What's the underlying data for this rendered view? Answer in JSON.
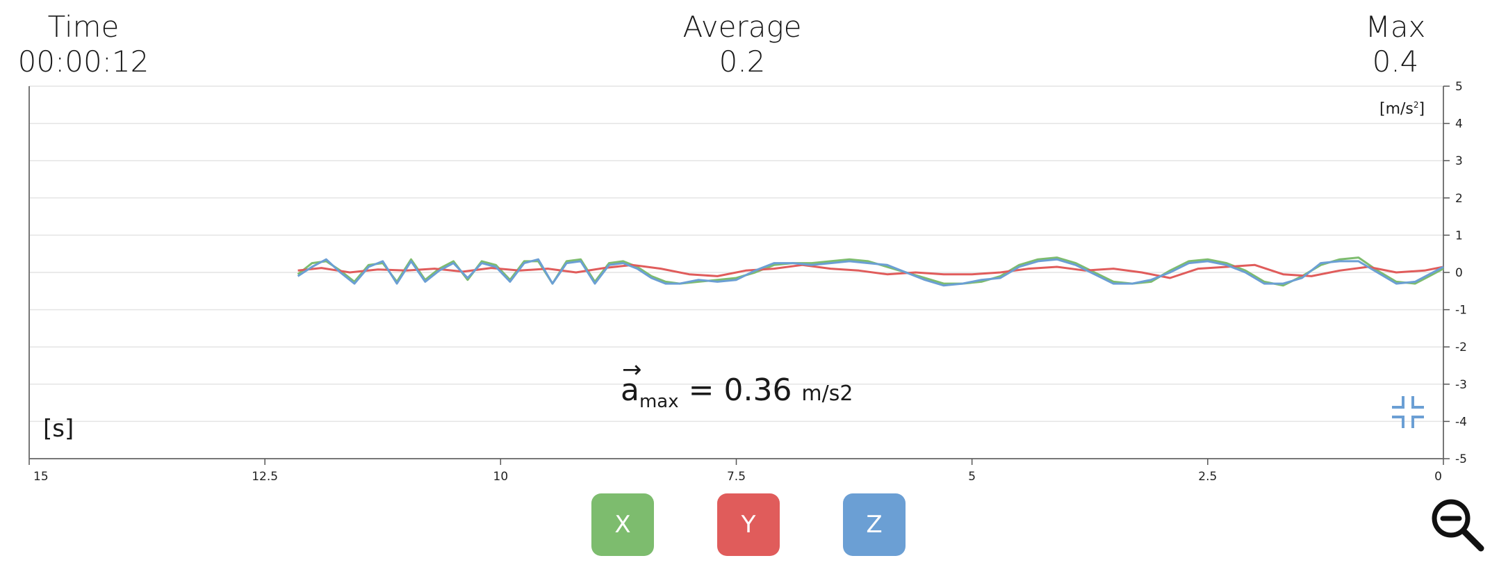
{
  "stats": {
    "time": {
      "label": "Time",
      "value": "00:00:12"
    },
    "average": {
      "label": "Average",
      "value": "0.2"
    },
    "max": {
      "label": "Max",
      "value": "0.4"
    }
  },
  "unit_label": {
    "base": "[m/s",
    "exp": "2",
    "end": "]"
  },
  "x_axis_unit": "[s]",
  "amax": {
    "symbol": "a",
    "arrow": "→",
    "sub": "max",
    "eq": " = 0.36 ",
    "unit": "m/s2"
  },
  "buttons": {
    "x": "X",
    "y": "Y",
    "z": "Z"
  },
  "colors": {
    "x": "#7dbc6e",
    "y": "#e05c5b",
    "z": "#6b9fd4"
  },
  "icons": {
    "collapse": "collapse-icon",
    "zoom_out": "zoom-out-icon"
  },
  "chart_data": {
    "type": "line",
    "xlim": [
      15,
      0
    ],
    "ylim": [
      -5,
      5
    ],
    "x_ticks": [
      15,
      12.5,
      10,
      7.5,
      5,
      2.5,
      0
    ],
    "x_tick_labels": [
      "15",
      "12.5",
      "10",
      "7.5",
      "5",
      "2.5",
      "0"
    ],
    "y_ticks": [
      5,
      4,
      3,
      2,
      1,
      0,
      -1,
      -2,
      -3,
      -4,
      -5
    ],
    "y_tick_labels": [
      "5",
      "4",
      "3",
      "2",
      "1",
      "0",
      "-1",
      "-2",
      "-3",
      "-4",
      "-5"
    ],
    "grid": true,
    "series": [
      {
        "name": "X",
        "color": "#7dbc6e",
        "x": [
          12.15,
          12.0,
          11.85,
          11.7,
          11.55,
          11.4,
          11.25,
          11.1,
          10.95,
          10.8,
          10.65,
          10.5,
          10.35,
          10.2,
          10.05,
          9.9,
          9.75,
          9.6,
          9.45,
          9.3,
          9.15,
          9.0,
          8.85,
          8.7,
          8.55,
          8.4,
          8.25,
          8.1,
          7.9,
          7.7,
          7.5,
          7.3,
          7.1,
          6.9,
          6.7,
          6.5,
          6.3,
          6.1,
          5.9,
          5.7,
          5.5,
          5.3,
          5.1,
          4.9,
          4.7,
          4.5,
          4.3,
          4.1,
          3.9,
          3.7,
          3.5,
          3.3,
          3.1,
          2.9,
          2.7,
          2.5,
          2.3,
          2.1,
          1.9,
          1.7,
          1.5,
          1.3,
          1.1,
          0.9,
          0.7,
          0.5,
          0.3,
          0.15,
          0.0
        ],
        "y": [
          -0.05,
          0.25,
          0.3,
          0.05,
          -0.25,
          0.2,
          0.25,
          -0.25,
          0.35,
          -0.2,
          0.1,
          0.3,
          -0.2,
          0.3,
          0.2,
          -0.2,
          0.3,
          0.3,
          -0.3,
          0.3,
          0.35,
          -0.25,
          0.25,
          0.3,
          0.15,
          -0.1,
          -0.25,
          -0.3,
          -0.25,
          -0.2,
          -0.15,
          0.0,
          0.2,
          0.25,
          0.25,
          0.3,
          0.35,
          0.3,
          0.15,
          0.0,
          -0.15,
          -0.3,
          -0.3,
          -0.25,
          -0.1,
          0.2,
          0.35,
          0.4,
          0.25,
          0.0,
          -0.25,
          -0.3,
          -0.25,
          0.05,
          0.3,
          0.35,
          0.25,
          0.05,
          -0.25,
          -0.35,
          -0.1,
          0.2,
          0.35,
          0.4,
          0.05,
          -0.25,
          -0.3,
          -0.1,
          0.1
        ]
      },
      {
        "name": "Y",
        "color": "#e05c5b",
        "x": [
          12.15,
          11.9,
          11.6,
          11.3,
          11.0,
          10.7,
          10.4,
          10.1,
          9.8,
          9.5,
          9.2,
          8.9,
          8.6,
          8.3,
          8.0,
          7.7,
          7.4,
          7.1,
          6.8,
          6.5,
          6.2,
          5.9,
          5.6,
          5.3,
          5.0,
          4.7,
          4.4,
          4.1,
          3.8,
          3.5,
          3.2,
          2.9,
          2.6,
          2.3,
          2.0,
          1.7,
          1.4,
          1.1,
          0.8,
          0.5,
          0.2,
          0.0
        ],
        "y": [
          0.05,
          0.12,
          0.0,
          0.08,
          0.05,
          0.1,
          0.02,
          0.12,
          0.05,
          0.1,
          0.0,
          0.12,
          0.2,
          0.1,
          -0.05,
          -0.1,
          0.05,
          0.1,
          0.2,
          0.1,
          0.05,
          -0.05,
          0.0,
          -0.05,
          -0.05,
          0.0,
          0.1,
          0.15,
          0.05,
          0.1,
          0.0,
          -0.15,
          0.1,
          0.15,
          0.2,
          -0.05,
          -0.1,
          0.05,
          0.15,
          0.0,
          0.05,
          0.15
        ]
      },
      {
        "name": "Z",
        "color": "#6b9fd4",
        "x": [
          12.15,
          12.0,
          11.85,
          11.7,
          11.55,
          11.4,
          11.25,
          11.1,
          10.95,
          10.8,
          10.65,
          10.5,
          10.35,
          10.2,
          10.05,
          9.9,
          9.75,
          9.6,
          9.45,
          9.3,
          9.15,
          9.0,
          8.85,
          8.7,
          8.55,
          8.4,
          8.25,
          8.1,
          7.9,
          7.7,
          7.5,
          7.3,
          7.1,
          6.9,
          6.7,
          6.5,
          6.3,
          6.1,
          5.9,
          5.7,
          5.5,
          5.3,
          5.1,
          4.9,
          4.7,
          4.5,
          4.3,
          4.1,
          3.9,
          3.7,
          3.5,
          3.3,
          3.1,
          2.9,
          2.7,
          2.5,
          2.3,
          2.1,
          1.9,
          1.7,
          1.5,
          1.3,
          1.1,
          0.9,
          0.7,
          0.5,
          0.3,
          0.15,
          0.0
        ],
        "y": [
          -0.1,
          0.15,
          0.35,
          0.0,
          -0.3,
          0.15,
          0.3,
          -0.3,
          0.3,
          -0.25,
          0.05,
          0.25,
          -0.15,
          0.25,
          0.15,
          -0.25,
          0.25,
          0.35,
          -0.3,
          0.25,
          0.3,
          -0.3,
          0.2,
          0.25,
          0.1,
          -0.15,
          -0.3,
          -0.3,
          -0.2,
          -0.25,
          -0.2,
          0.05,
          0.25,
          0.25,
          0.2,
          0.25,
          0.3,
          0.25,
          0.2,
          0.0,
          -0.2,
          -0.35,
          -0.3,
          -0.2,
          -0.15,
          0.15,
          0.3,
          0.35,
          0.2,
          -0.05,
          -0.3,
          -0.3,
          -0.2,
          0.0,
          0.25,
          0.3,
          0.2,
          0.0,
          -0.3,
          -0.3,
          -0.15,
          0.25,
          0.3,
          0.3,
          0.0,
          -0.3,
          -0.25,
          -0.05,
          0.15
        ]
      }
    ]
  }
}
